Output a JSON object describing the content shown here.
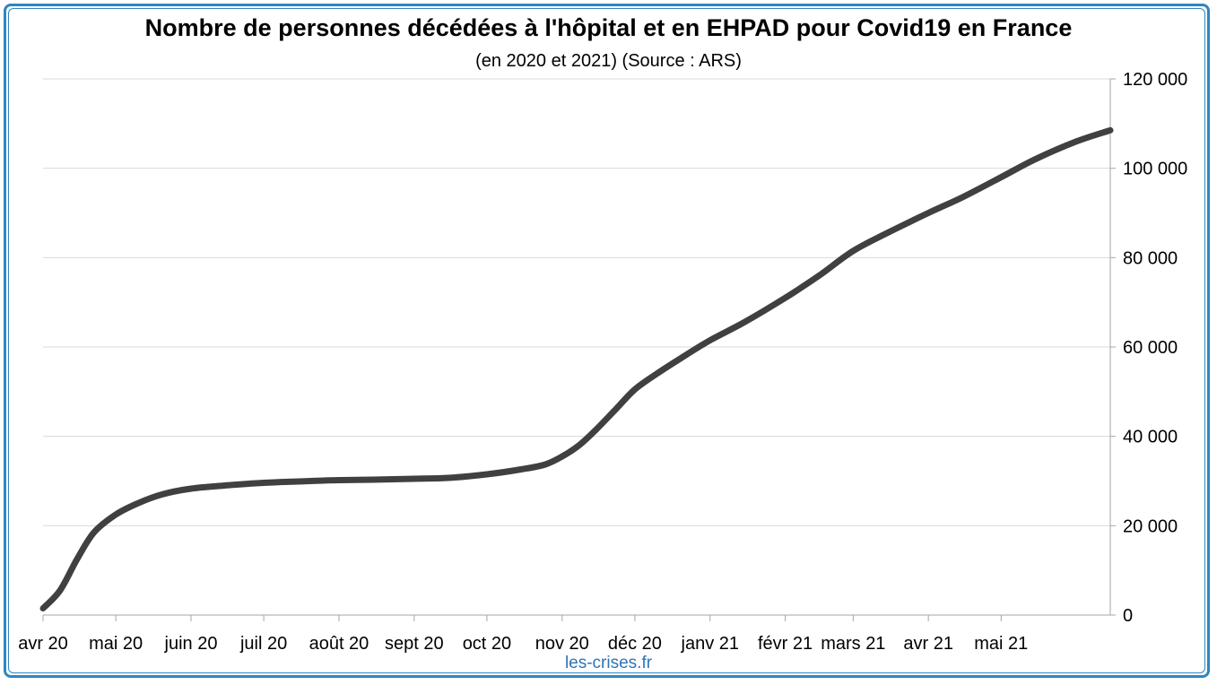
{
  "chart_data": {
    "type": "line",
    "title": "Nombre de personnes décédées à l'hôpital et en EHPAD pour Covid19 en France",
    "subtitle": "(en 2020 et 2021) (Source : ARS)",
    "source": "les-crises.fr",
    "ylim": [
      0,
      120000
    ],
    "yticks": [
      0,
      20000,
      40000,
      60000,
      80000,
      100000,
      120000
    ],
    "ytick_labels": [
      "0",
      "20 000",
      "40 000",
      "60 000",
      "80 000",
      "100 000",
      "120 000"
    ],
    "y_axis_position": "right",
    "grid": "horizontal",
    "x_tick_labels": [
      "avr 20",
      "mai 20",
      "juin 20",
      "juil 20",
      "août 20",
      "sept 20",
      "oct 20",
      "nov 20",
      "déc 20",
      "janv 21",
      "févr 21",
      "mars 21",
      "avr 21",
      "mai 21"
    ],
    "x_range": [
      "2020-04-01",
      "2021-06-15"
    ],
    "series": [
      {
        "name": "",
        "color": "#404040",
        "points": [
          [
            "2020-04-01",
            1500
          ],
          [
            "2020-04-08",
            5500
          ],
          [
            "2020-04-15",
            12500
          ],
          [
            "2020-04-22",
            18500
          ],
          [
            "2020-05-01",
            22500
          ],
          [
            "2020-05-10",
            25000
          ],
          [
            "2020-05-20",
            27000
          ],
          [
            "2020-06-01",
            28300
          ],
          [
            "2020-06-15",
            29000
          ],
          [
            "2020-07-01",
            29600
          ],
          [
            "2020-07-15",
            29900
          ],
          [
            "2020-08-01",
            30200
          ],
          [
            "2020-08-15",
            30300
          ],
          [
            "2020-09-01",
            30500
          ],
          [
            "2020-09-15",
            30700
          ],
          [
            "2020-10-01",
            31500
          ],
          [
            "2020-10-15",
            32600
          ],
          [
            "2020-10-25",
            33700
          ],
          [
            "2020-11-01",
            35500
          ],
          [
            "2020-11-08",
            38000
          ],
          [
            "2020-11-15",
            41500
          ],
          [
            "2020-11-23",
            46000
          ],
          [
            "2020-12-01",
            50500
          ],
          [
            "2020-12-10",
            54000
          ],
          [
            "2020-12-20",
            57500
          ],
          [
            "2021-01-01",
            61500
          ],
          [
            "2021-01-15",
            65500
          ],
          [
            "2021-02-01",
            71000
          ],
          [
            "2021-02-15",
            76000
          ],
          [
            "2021-03-01",
            81500
          ],
          [
            "2021-03-15",
            85500
          ],
          [
            "2021-04-01",
            90000
          ],
          [
            "2021-04-15",
            93500
          ],
          [
            "2021-05-01",
            98000
          ],
          [
            "2021-05-15",
            102000
          ],
          [
            "2021-06-01",
            106000
          ],
          [
            "2021-06-15",
            108500
          ]
        ]
      }
    ]
  }
}
